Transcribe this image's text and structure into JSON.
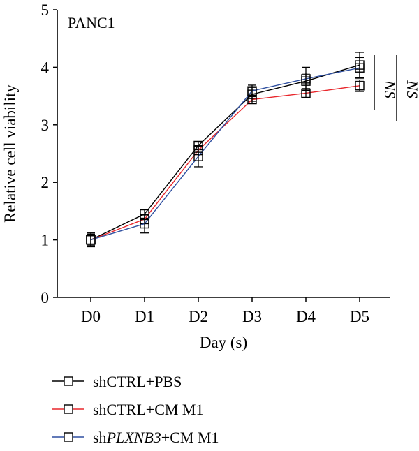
{
  "chart_data": {
    "type": "line",
    "title": "PANC1",
    "xlabel": "Day (s)",
    "ylabel": "Relative cell viability",
    "categories": [
      "D0",
      "D1",
      "D2",
      "D3",
      "D4",
      "D5"
    ],
    "ylim": [
      0,
      5
    ],
    "yticks": [
      "0",
      "1",
      "2",
      "3",
      "4",
      "5"
    ],
    "grid": false,
    "legend_position": "bottom-left",
    "series": [
      {
        "name": "shCTRL+PBS",
        "name_parts": [
          {
            "text": "shCTRL+PBS",
            "italic": false
          }
        ],
        "color": "#000000",
        "values": [
          1.0,
          1.45,
          2.64,
          3.53,
          3.76,
          4.04
        ],
        "errors": [
          0.12,
          0.08,
          0.06,
          0.12,
          0.14,
          0.22
        ]
      },
      {
        "name": "shCTRL+CM M1",
        "name_parts": [
          {
            "text": "shCTRL+CM M1",
            "italic": false
          }
        ],
        "color": "#e8262b",
        "values": [
          1.0,
          1.36,
          2.56,
          3.44,
          3.55,
          3.68
        ],
        "errors": [
          0.08,
          0.08,
          0.08,
          0.07,
          0.08,
          0.1
        ]
      },
      {
        "name": "shPLXNB3+CM M1",
        "name_parts": [
          {
            "text": "sh",
            "italic": false
          },
          {
            "text": "PLXNB3",
            "italic": true
          },
          {
            "text": "+CM M1",
            "italic": false
          }
        ],
        "color": "#2e4fa0",
        "values": [
          1.0,
          1.28,
          2.45,
          3.59,
          3.8,
          3.99
        ],
        "errors": [
          0.1,
          0.16,
          0.18,
          0.1,
          0.2,
          0.18
        ]
      }
    ],
    "annotations": [
      "NS",
      "NS"
    ]
  }
}
